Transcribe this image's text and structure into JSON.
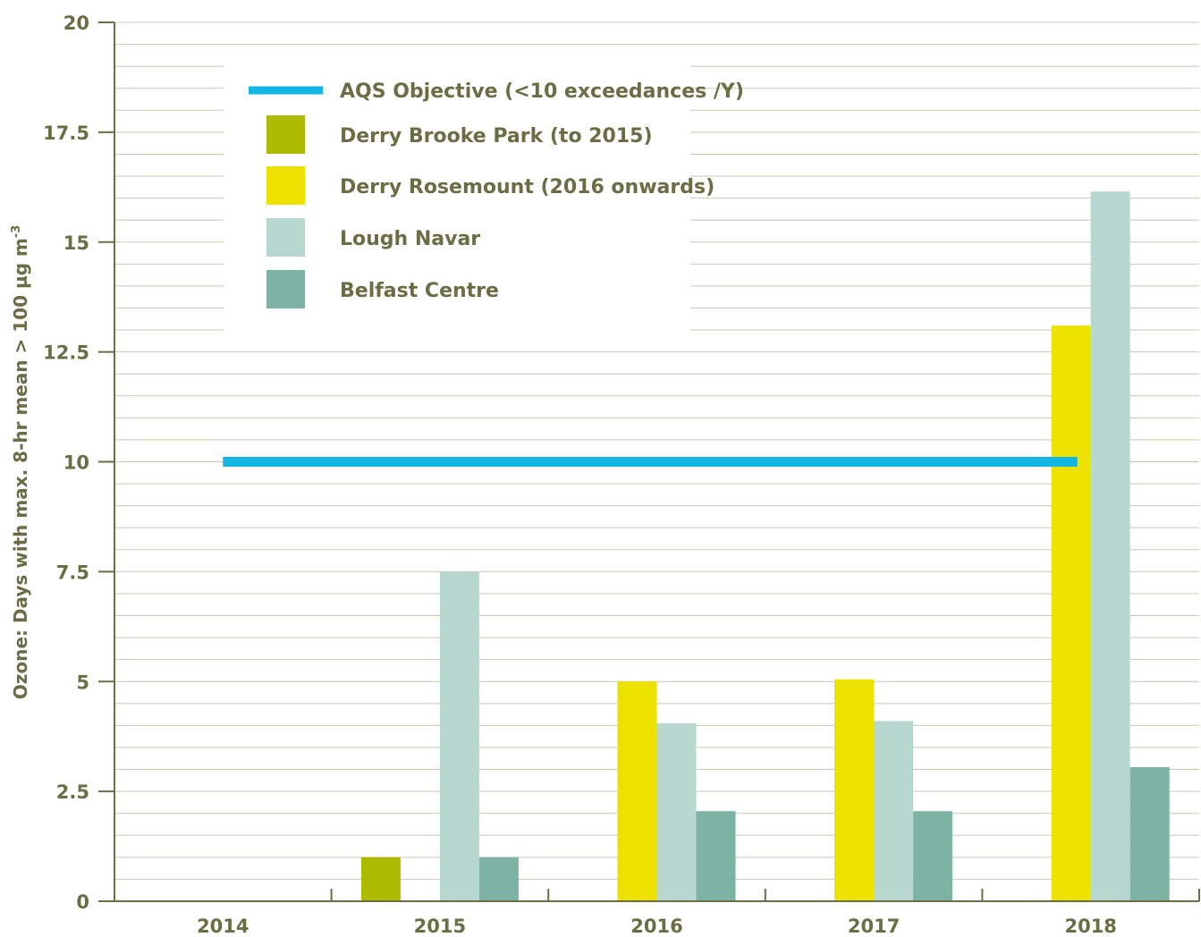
{
  "chart_data": {
    "type": "bar",
    "title": "",
    "xlabel": "",
    "ylabel": "Ozone:  Days with max. 8-hr mean > 100 µg m",
    "ylabel_superscript": "-3",
    "categories": [
      "2014",
      "2015",
      "2016",
      "2017",
      "2018"
    ],
    "ylim": [
      0,
      20
    ],
    "yticks": [
      0,
      2.5,
      5,
      7.5,
      10,
      12.5,
      15,
      17.5,
      20
    ],
    "ytick_labels": [
      "0",
      "2.5",
      "5",
      "7.5",
      "10",
      "12.5",
      "15",
      "17.5",
      "20"
    ],
    "grid": true,
    "legend_position": "top-left",
    "series": [
      {
        "name": "Derry Brooke Park (to 2015)",
        "color": "#acba00",
        "values": [
          0,
          1,
          null,
          null,
          null
        ]
      },
      {
        "name": "Derry Rosemount (2016 onwards)",
        "color": "#ede100",
        "values": [
          null,
          null,
          5,
          5.05,
          13.1
        ]
      },
      {
        "name": "Lough Navar",
        "color": "#b8d8cf",
        "values": [
          0,
          7.5,
          4.05,
          4.1,
          16.15
        ]
      },
      {
        "name": "Belfast Centre",
        "color": "#7cb3a3",
        "values": [
          0,
          1,
          2.05,
          2.05,
          3.05
        ]
      }
    ],
    "objective": {
      "name": "AQS Objective (<10 exceedances /Y)",
      "color": "#13b5e3",
      "value": 10
    }
  }
}
